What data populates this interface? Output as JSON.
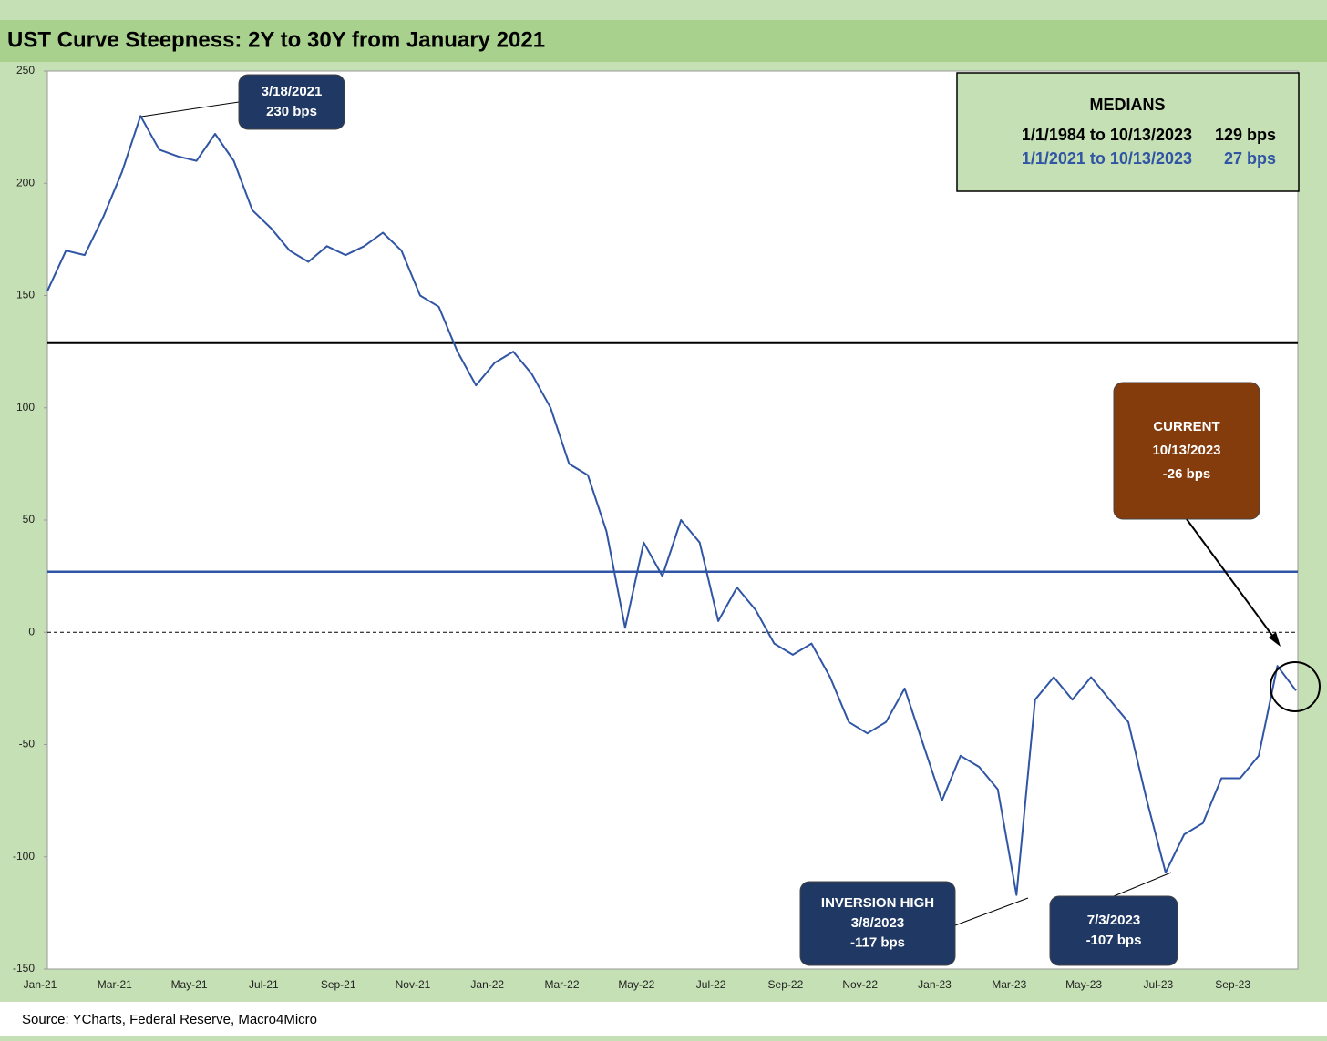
{
  "chart_data": {
    "type": "line",
    "title": "UST Curve Steepness: 2Y to 30Y from January 2021",
    "source": "Source: YCharts, Federal Reserve, Macro4Micro",
    "categories": [
      "Jan-21",
      null,
      null,
      null,
      "Mar-21",
      null,
      null,
      null,
      "May-21",
      null,
      null,
      null,
      "Jul-21",
      null,
      null,
      null,
      "Sep-21",
      null,
      null,
      null,
      "Nov-21",
      null,
      null,
      null,
      "Jan-22",
      null,
      null,
      null,
      "Mar-22",
      null,
      null,
      null,
      "May-22",
      null,
      null,
      null,
      "Jul-22",
      null,
      null,
      null,
      "Sep-22",
      null,
      null,
      null,
      "Nov-22",
      null,
      null,
      null,
      "Jan-23",
      null,
      null,
      null,
      "Mar-23",
      null,
      null,
      null,
      "May-23",
      null,
      null,
      null,
      "Jul-23",
      null,
      null,
      null,
      "Sep-23",
      null,
      null,
      null
    ],
    "series": [
      {
        "name": "2Y to 30Y",
        "color": "#2f55a4",
        "values": [
          152,
          170,
          168,
          185,
          205,
          230,
          215,
          212,
          210,
          222,
          210,
          188,
          180,
          170,
          165,
          172,
          168,
          172,
          178,
          170,
          150,
          145,
          125,
          110,
          120,
          125,
          115,
          100,
          75,
          70,
          45,
          2,
          40,
          25,
          50,
          40,
          5,
          20,
          10,
          -5,
          -10,
          -5,
          -20,
          -40,
          -45,
          -40,
          -25,
          -50,
          -75,
          -55,
          -60,
          -70,
          -117,
          -30,
          -20,
          -30,
          -20,
          -30,
          -40,
          -75,
          -107,
          -90,
          -85,
          -65,
          -65,
          -55,
          -15,
          -26
        ]
      }
    ],
    "reference_lines": [
      {
        "value": 129,
        "color": "#000000"
      },
      {
        "value": 27,
        "color": "#2f55a4"
      }
    ],
    "ylim": [
      -150,
      250
    ],
    "yticks": [
      -150,
      -100,
      -50,
      0,
      50,
      100,
      150,
      200,
      250
    ],
    "medians": {
      "title": "MEDIANS",
      "rows": [
        [
          "1/1/1984 to 10/13/2023",
          "129 bps"
        ],
        [
          "1/1/2021 to 10/13/2023",
          "27 bps"
        ]
      ]
    },
    "annotations": [
      {
        "lines": [
          "3/18/2021",
          "230 bps"
        ]
      },
      {
        "lines": [
          "CURRENT",
          "10/13/2023",
          "-26 bps"
        ]
      },
      {
        "lines": [
          "INVERSION HIGH",
          "3/8/2023",
          "-117 bps"
        ]
      },
      {
        "lines": [
          "7/3/2023",
          "-107 bps"
        ]
      }
    ]
  }
}
